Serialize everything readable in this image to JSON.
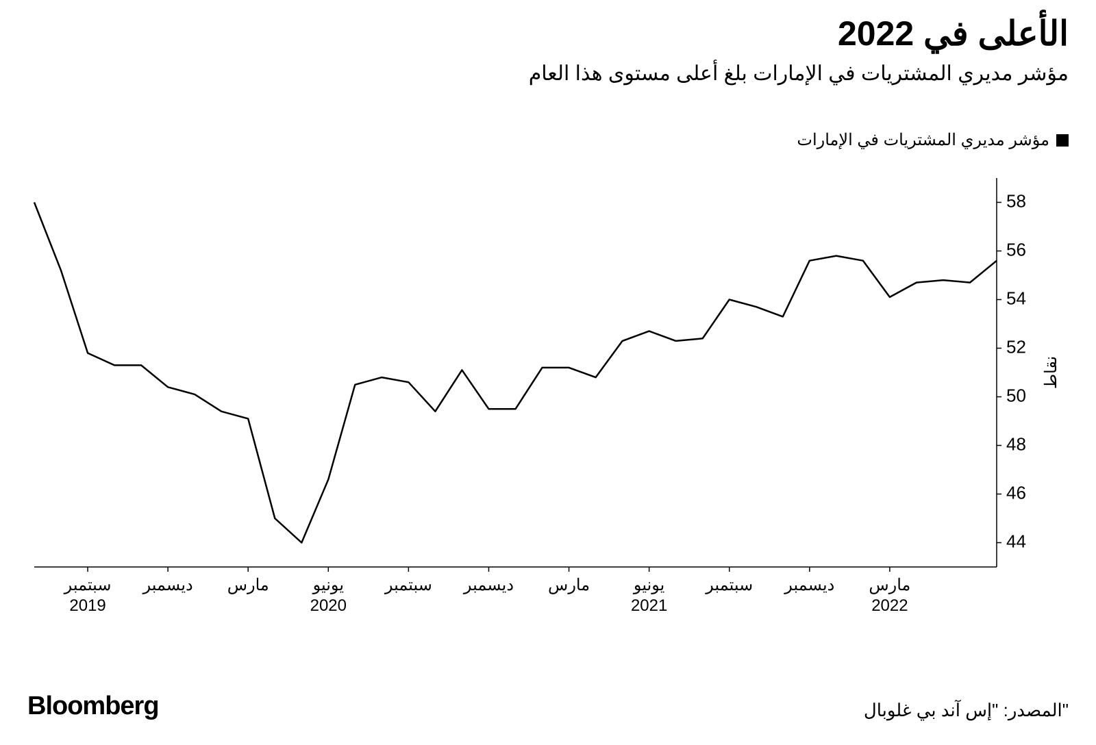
{
  "header": {
    "title": "الأعلى في 2022",
    "subtitle": "مؤشر مديري المشتريات في الإمارات بلغ أعلى مستوى هذا العام"
  },
  "legend": {
    "label": "مؤشر مديري المشتريات في الإمارات",
    "swatch_color": "#000000"
  },
  "chart": {
    "type": "line",
    "background_color": "#ffffff",
    "axis_color": "#000000",
    "line_color": "#000000",
    "line_width": 2.5,
    "ylim": [
      43,
      59
    ],
    "yticks": [
      44,
      46,
      48,
      50,
      52,
      54,
      56,
      58
    ],
    "ylabel": "نقاط",
    "xticks": [
      {
        "idx": 2,
        "month": "سبتمبر",
        "year": "2019"
      },
      {
        "idx": 5,
        "month": "ديسمبر",
        "year": ""
      },
      {
        "idx": 8,
        "month": "مارس",
        "year": ""
      },
      {
        "idx": 11,
        "month": "يونيو",
        "year": "2020"
      },
      {
        "idx": 14,
        "month": "سبتمبر",
        "year": ""
      },
      {
        "idx": 17,
        "month": "ديسمبر",
        "year": ""
      },
      {
        "idx": 20,
        "month": "مارس",
        "year": ""
      },
      {
        "idx": 23,
        "month": "يونيو",
        "year": "2021"
      },
      {
        "idx": 26,
        "month": "سبتمبر",
        "year": ""
      },
      {
        "idx": 29,
        "month": "ديسمبر",
        "year": ""
      },
      {
        "idx": 32,
        "month": "مارس",
        "year": "2022"
      }
    ],
    "series": {
      "values": [
        58.0,
        55.2,
        51.8,
        51.3,
        51.3,
        50.4,
        50.1,
        49.4,
        49.1,
        45.0,
        44.0,
        46.6,
        50.5,
        50.8,
        50.6,
        49.4,
        51.1,
        49.5,
        49.5,
        51.2,
        51.2,
        50.8,
        52.3,
        52.7,
        52.3,
        52.4,
        54.0,
        53.7,
        53.3,
        55.6,
        55.8,
        55.6,
        54.1,
        54.7,
        54.8,
        54.7,
        55.6
      ]
    }
  },
  "footer": {
    "brand": "Bloomberg",
    "source": "المصدر: \"إس آند بي غلوبال\""
  }
}
